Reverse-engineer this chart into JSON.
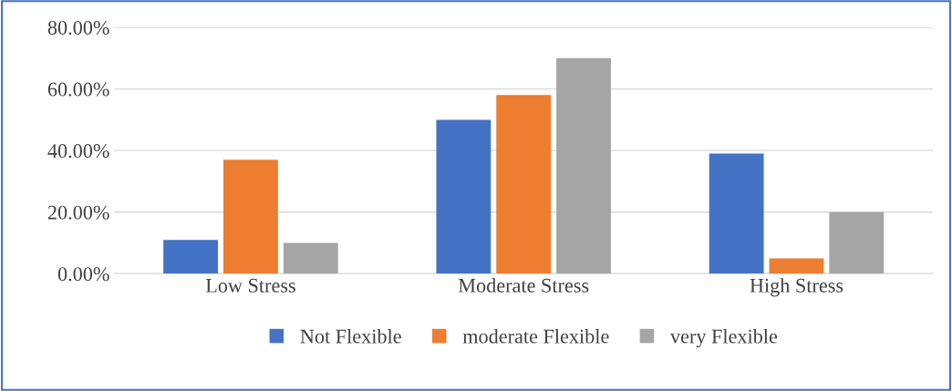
{
  "chart_data": {
    "type": "bar",
    "categories": [
      "Low Stress",
      "Moderate Stress",
      "High Stress"
    ],
    "series": [
      {
        "name": "Not Flexible",
        "color": "#4472c4",
        "values": [
          11,
          50,
          39
        ]
      },
      {
        "name": "moderate Flexible",
        "color": "#ed7d31",
        "values": [
          37,
          58,
          5
        ]
      },
      {
        "name": "very Flexible",
        "color": "#a5a5a5",
        "values": [
          10,
          70,
          20
        ]
      }
    ],
    "ylim": [
      0,
      80
    ],
    "yticks": [
      {
        "value": 0,
        "label": "0.00%"
      },
      {
        "value": 20,
        "label": "20.00%"
      },
      {
        "value": 40,
        "label": "40.00%"
      },
      {
        "value": 60,
        "label": "60.00%"
      },
      {
        "value": 80,
        "label": "80.00%"
      }
    ],
    "grid": "y",
    "legend": "bottom"
  }
}
